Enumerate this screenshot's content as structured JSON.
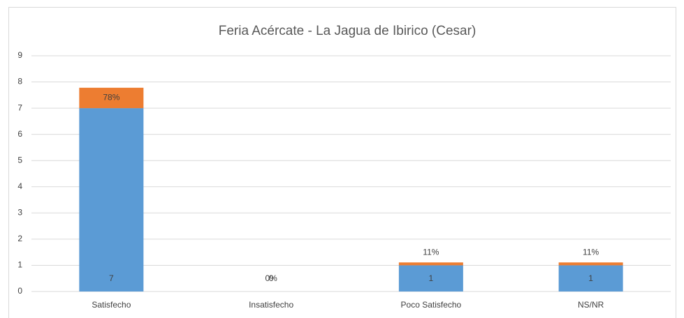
{
  "chart_data": {
    "type": "bar",
    "stacked": true,
    "title": "Feria Acércate - La Jagua de Ibirico (Cesar)",
    "categories": [
      "Satisfecho",
      "Insatisfecho",
      "Poco Satisfecho",
      "NS/NR"
    ],
    "series": [
      {
        "color": "#5b9bd5",
        "values": [
          7,
          0,
          1,
          1
        ]
      },
      {
        "color": "#ed7d31",
        "values": [
          0.78,
          0,
          0.11,
          0.11
        ],
        "value_labels": [
          "78%",
          "0%",
          "11%",
          "11%"
        ]
      }
    ],
    "ylim": [
      0,
      9
    ],
    "yticks": [
      0,
      1,
      2,
      3,
      4,
      5,
      6,
      7,
      8,
      9
    ],
    "grid": true
  }
}
